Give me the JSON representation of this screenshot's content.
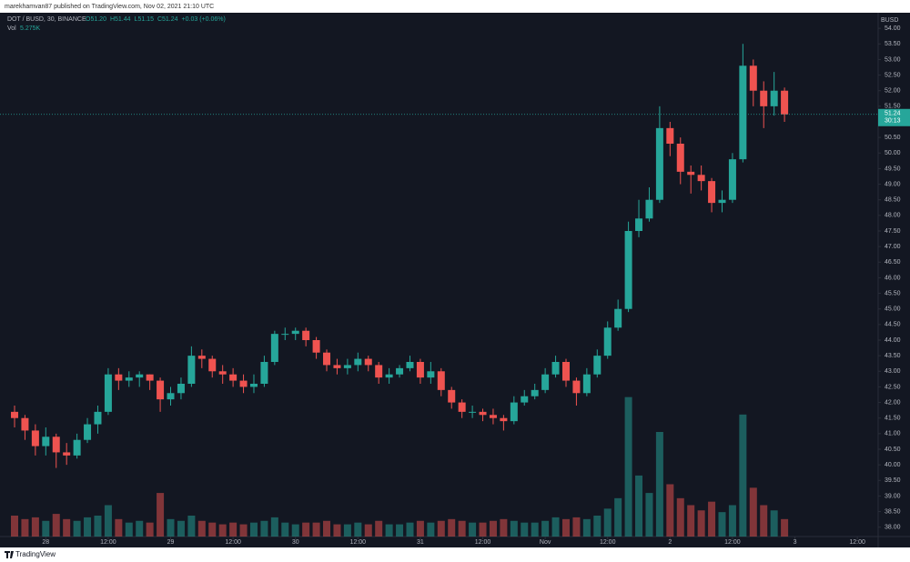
{
  "chart_data": {
    "type": "candlestick",
    "header": "marekhamvan87 published on TradingView.com, Nov 02, 2021 21:10 UTC",
    "symbol": "DOT / BUSD, 30, BINANCE",
    "ohlc": [
      "O51.20",
      "H51.44",
      "L51.15",
      "C51.24",
      "+0.03 (+0.06%)"
    ],
    "volume_label": "Vol",
    "volume_value": "5.275K",
    "currency": "BUSD",
    "last_price": {
      "value": 51.24,
      "label": "51.24"
    },
    "countdown": "30:13",
    "brand": "TradingView",
    "up_color": "#26a69a",
    "down_color": "#ef5350",
    "grid": false,
    "x": [
      -6,
      -4,
      -2,
      0,
      2,
      4,
      6,
      8,
      10,
      12,
      14,
      16,
      18,
      20,
      22,
      24,
      26,
      28,
      30,
      32,
      34,
      36,
      38,
      40,
      42,
      44,
      46,
      48,
      50,
      52,
      54,
      56,
      58,
      60,
      62,
      64,
      66,
      68,
      70,
      72,
      74,
      76,
      78,
      80,
      82,
      84,
      86,
      88,
      90,
      92,
      94,
      96,
      98,
      100,
      102,
      104,
      106,
      108,
      110,
      112,
      114,
      116,
      118,
      120,
      122,
      124,
      126,
      128,
      130,
      132,
      134,
      136,
      138,
      140,
      142
    ],
    "open": [
      41.7,
      41.5,
      41.1,
      40.6,
      40.9,
      40.4,
      40.3,
      40.8,
      41.3,
      41.7,
      42.9,
      42.7,
      42.8,
      42.9,
      42.7,
      42.1,
      42.3,
      42.6,
      43.5,
      43.4,
      43.0,
      42.9,
      42.7,
      42.5,
      42.6,
      43.3,
      44.2,
      44.2,
      44.3,
      44.0,
      43.6,
      43.2,
      43.1,
      43.2,
      43.4,
      43.2,
      42.8,
      42.9,
      43.1,
      43.3,
      42.8,
      43.0,
      42.4,
      42.0,
      41.7,
      41.7,
      41.6,
      41.5,
      41.4,
      42.0,
      42.2,
      42.4,
      42.9,
      43.3,
      42.7,
      42.3,
      42.9,
      43.5,
      44.4,
      45.0,
      47.5,
      47.9,
      48.5,
      50.8,
      50.3,
      49.4,
      49.3,
      49.1,
      48.4,
      48.5,
      49.8,
      52.8,
      52.0,
      51.5,
      52.0
    ],
    "high": [
      41.9,
      41.6,
      41.3,
      41.2,
      41.0,
      40.7,
      41.0,
      41.5,
      41.9,
      43.1,
      43.1,
      43.0,
      43.0,
      42.9,
      42.8,
      42.5,
      42.8,
      43.8,
      43.7,
      43.5,
      43.2,
      43.1,
      42.9,
      42.9,
      43.5,
      44.3,
      44.4,
      44.4,
      44.4,
      44.1,
      43.7,
      43.4,
      43.4,
      43.6,
      43.5,
      43.3,
      43.1,
      43.2,
      43.5,
      43.4,
      43.3,
      43.1,
      42.5,
      42.1,
      41.9,
      41.8,
      41.8,
      41.6,
      42.2,
      42.4,
      42.6,
      43.1,
      43.5,
      43.4,
      42.8,
      43.1,
      43.7,
      44.6,
      45.3,
      47.8,
      48.5,
      48.9,
      51.5,
      51.0,
      50.5,
      49.6,
      49.6,
      49.2,
      48.8,
      50.0,
      53.5,
      53.0,
      52.3,
      52.6,
      52.1
    ],
    "low": [
      41.2,
      40.8,
      40.3,
      40.3,
      39.9,
      40.0,
      40.2,
      40.7,
      41.0,
      41.6,
      42.4,
      42.5,
      42.5,
      42.4,
      41.7,
      41.9,
      42.1,
      42.5,
      43.1,
      42.8,
      42.6,
      42.5,
      42.3,
      42.3,
      42.5,
      43.2,
      44.0,
      44.0,
      43.8,
      43.4,
      43.0,
      42.9,
      42.9,
      43.0,
      43.0,
      42.6,
      42.6,
      42.8,
      43.0,
      42.6,
      42.6,
      42.2,
      41.8,
      41.5,
      41.5,
      41.4,
      41.3,
      41.1,
      41.3,
      41.9,
      42.1,
      42.3,
      42.8,
      42.5,
      41.9,
      42.2,
      42.8,
      43.4,
      44.3,
      44.9,
      47.3,
      47.8,
      48.4,
      49.9,
      49.0,
      48.7,
      48.8,
      48.1,
      48.1,
      48.4,
      49.7,
      51.5,
      50.8,
      51.2,
      51.0
    ],
    "close": [
      41.5,
      41.1,
      40.6,
      40.9,
      40.4,
      40.3,
      40.8,
      41.3,
      41.7,
      42.9,
      42.7,
      42.8,
      42.9,
      42.7,
      42.1,
      42.3,
      42.6,
      43.5,
      43.4,
      43.0,
      42.9,
      42.7,
      42.5,
      42.6,
      43.3,
      44.2,
      44.2,
      44.3,
      44.0,
      43.6,
      43.2,
      43.1,
      43.2,
      43.4,
      43.2,
      42.8,
      42.9,
      43.1,
      43.3,
      42.8,
      43.0,
      42.4,
      42.0,
      41.7,
      41.7,
      41.6,
      41.5,
      41.4,
      42.0,
      42.2,
      42.4,
      42.9,
      43.3,
      42.7,
      42.3,
      42.9,
      43.5,
      44.4,
      45.0,
      47.5,
      47.9,
      48.5,
      50.8,
      50.3,
      49.4,
      49.3,
      49.1,
      48.4,
      48.5,
      49.8,
      52.8,
      52.0,
      51.5,
      52.0,
      51.24
    ],
    "volume": [
      12,
      10,
      11,
      9,
      13,
      10,
      9,
      11,
      12,
      18,
      10,
      8,
      9,
      8,
      25,
      10,
      9,
      12,
      9,
      8,
      7,
      8,
      7,
      8,
      9,
      11,
      8,
      7,
      8,
      8,
      9,
      7,
      7,
      8,
      7,
      9,
      7,
      7,
      8,
      9,
      8,
      9,
      10,
      9,
      8,
      8,
      9,
      10,
      9,
      8,
      8,
      9,
      11,
      10,
      11,
      10,
      12,
      16,
      22,
      80,
      35,
      25,
      60,
      30,
      22,
      18,
      15,
      20,
      14,
      18,
      70,
      28,
      18,
      15,
      10
    ],
    "vlim": [
      0,
      120
    ],
    "xlim": [
      -8.8,
      160
    ],
    "xticks": [
      {
        "value": 0,
        "label": "28"
      },
      {
        "value": 12,
        "label": "12:00"
      },
      {
        "value": 24,
        "label": "29"
      },
      {
        "value": 36,
        "label": "12:00"
      },
      {
        "value": 48,
        "label": "30"
      },
      {
        "value": 60,
        "label": "12:00"
      },
      {
        "value": 72,
        "label": "31"
      },
      {
        "value": 84,
        "label": "12:00"
      },
      {
        "value": 96,
        "label": "Nov"
      },
      {
        "value": 108,
        "label": "12:00"
      },
      {
        "value": 120,
        "label": "2"
      },
      {
        "value": 132,
        "label": "12:00"
      },
      {
        "value": 144,
        "label": "3"
      },
      {
        "value": 156,
        "label": "12:00"
      }
    ],
    "ylim": [
      37.7,
      54.5
    ],
    "yticks": [
      {
        "value": 38,
        "label": "38.00"
      },
      {
        "value": 38.5,
        "label": "38.50"
      },
      {
        "value": 39,
        "label": "39.00"
      },
      {
        "value": 39.5,
        "label": "39.50"
      },
      {
        "value": 40,
        "label": "40.00"
      },
      {
        "value": 40.5,
        "label": "40.50"
      },
      {
        "value": 41,
        "label": "41.00"
      },
      {
        "value": 41.5,
        "label": "41.50"
      },
      {
        "value": 42,
        "label": "42.00"
      },
      {
        "value": 42.5,
        "label": "42.50"
      },
      {
        "value": 43,
        "label": "43.00"
      },
      {
        "value": 43.5,
        "label": "43.50"
      },
      {
        "value": 44,
        "label": "44.00"
      },
      {
        "value": 44.5,
        "label": "44.50"
      },
      {
        "value": 45,
        "label": "45.00"
      },
      {
        "value": 45.5,
        "label": "45.50"
      },
      {
        "value": 46,
        "label": "46.00"
      },
      {
        "value": 46.5,
        "label": "46.50"
      },
      {
        "value": 47,
        "label": "47.00"
      },
      {
        "value": 47.5,
        "label": "47.50"
      },
      {
        "value": 48,
        "label": "48.00"
      },
      {
        "value": 48.5,
        "label": "48.50"
      },
      {
        "value": 49,
        "label": "49.00"
      },
      {
        "value": 49.5,
        "label": "49.50"
      },
      {
        "value": 50,
        "label": "50.00"
      },
      {
        "value": 50.5,
        "label": "50.50"
      },
      {
        "value": 51,
        "label": "51.00"
      },
      {
        "value": 51.5,
        "label": "51.50"
      },
      {
        "value": 52,
        "label": "52.00"
      },
      {
        "value": 52.5,
        "label": "52.50"
      },
      {
        "value": 53,
        "label": "53.00"
      },
      {
        "value": 53.5,
        "label": "53.50"
      },
      {
        "value": 54,
        "label": "54.00"
      }
    ]
  }
}
